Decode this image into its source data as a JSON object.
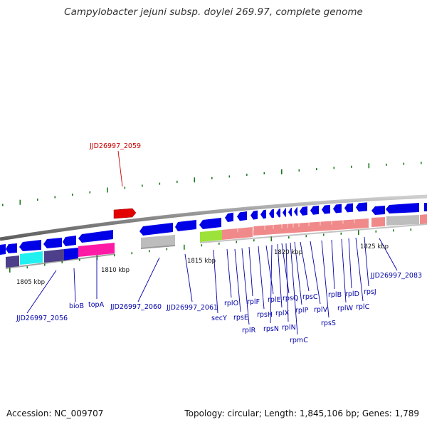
{
  "header": {
    "title": "Campylobacter jejuni subsp. doylei 269.97, complete genome"
  },
  "footer": {
    "accession": "Accession: NC_009707",
    "summary": "Topology: circular; Length: 1,845,106 bp; Genes: 1,789"
  },
  "colors": {
    "forward_gene": "#e20000",
    "cds": "#0000e6",
    "pseudo": "#bdbdbd",
    "ribosomal": "#f08a8a",
    "secY": "#9ce23a",
    "gene_cyan": "#22f0f0",
    "gene_magenta": "#ff1aa6",
    "gene_slate": "#4d3f8a",
    "label_blue": "#0000aa",
    "label_red": "#cc0000",
    "tick": "#1a7a1a",
    "backbone": "#8a8a8a"
  },
  "scale_labels": [
    "1805 kbp",
    "1810 kbp",
    "1815 kbp",
    "1820 kbp",
    "1825 kbp"
  ],
  "gene_labels": [
    {
      "text": "JJD26997_2059",
      "strand": "forward"
    },
    {
      "text": "JJD26997_2056",
      "strand": "reverse"
    },
    {
      "text": "bioB",
      "strand": "reverse"
    },
    {
      "text": "topA",
      "strand": "reverse"
    },
    {
      "text": "JJD26997_2060",
      "strand": "reverse"
    },
    {
      "text": "JJD26997_2061",
      "strand": "reverse"
    },
    {
      "text": "secY",
      "strand": "reverse"
    },
    {
      "text": "rplO",
      "strand": "reverse"
    },
    {
      "text": "rpsE",
      "strand": "reverse"
    },
    {
      "text": "rplR",
      "strand": "reverse"
    },
    {
      "text": "rplF",
      "strand": "reverse"
    },
    {
      "text": "rpsH",
      "strand": "reverse"
    },
    {
      "text": "rplE",
      "strand": "reverse"
    },
    {
      "text": "rpsN",
      "strand": "reverse"
    },
    {
      "text": "rplX",
      "strand": "reverse"
    },
    {
      "text": "rpsQ",
      "strand": "reverse"
    },
    {
      "text": "rplN",
      "strand": "reverse"
    },
    {
      "text": "rpmC",
      "strand": "reverse"
    },
    {
      "text": "rplP",
      "strand": "reverse"
    },
    {
      "text": "rpsC",
      "strand": "reverse"
    },
    {
      "text": "rplV",
      "strand": "reverse"
    },
    {
      "text": "rpsS",
      "strand": "reverse"
    },
    {
      "text": "rplB",
      "strand": "reverse"
    },
    {
      "text": "rplW",
      "strand": "reverse"
    },
    {
      "text": "rplD",
      "strand": "reverse"
    },
    {
      "text": "rplC",
      "strand": "reverse"
    },
    {
      "text": "rpsJ",
      "strand": "reverse"
    },
    {
      "text": "JJD26997_2083",
      "strand": "reverse"
    }
  ]
}
